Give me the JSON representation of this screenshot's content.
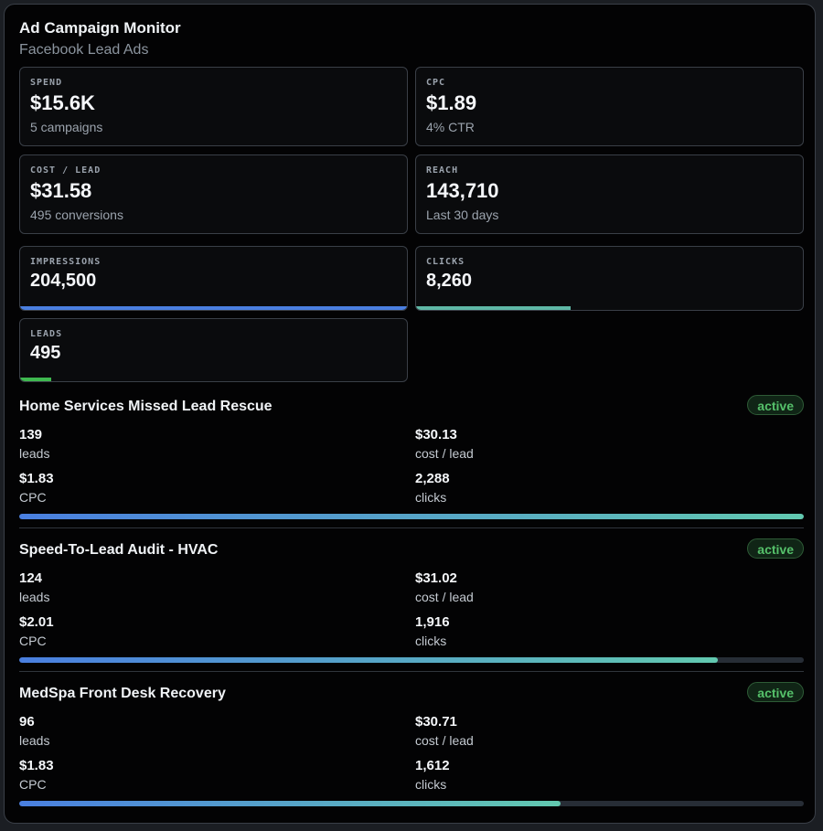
{
  "header": {
    "title": "Ad Campaign Monitor",
    "subtitle": "Facebook Lead Ads"
  },
  "summary_cards": [
    {
      "label": "SPEND",
      "value": "$15.6K",
      "sub": "5 campaigns"
    },
    {
      "label": "CPC",
      "value": "$1.89",
      "sub": "4% CTR"
    },
    {
      "label": "COST / LEAD",
      "value": "$31.58",
      "sub": "495 conversions"
    },
    {
      "label": "REACH",
      "value": "143,710",
      "sub": "Last 30 days"
    }
  ],
  "progress_cards": [
    {
      "label": "IMPRESSIONS",
      "value": "204,500",
      "fill": 1.0,
      "color": "#4a7fe0"
    },
    {
      "label": "CLICKS",
      "value": "8,260",
      "fill": 0.4,
      "color": "#5fb8a6"
    },
    {
      "label": "LEADS",
      "value": "495",
      "fill": 0.08,
      "color": "#3fb950"
    }
  ],
  "campaigns": [
    {
      "name": "Home Services Missed Lead Rescue",
      "status": "active",
      "leads": "139",
      "leads_label": "leads",
      "cost_per_lead": "$30.13",
      "cost_per_lead_label": "cost / lead",
      "cpc": "$1.83",
      "cpc_label": "CPC",
      "clicks": "2,288",
      "clicks_label": "clicks",
      "progress": 1.0
    },
    {
      "name": "Speed-To-Lead Audit - HVAC",
      "status": "active",
      "leads": "124",
      "leads_label": "leads",
      "cost_per_lead": "$31.02",
      "cost_per_lead_label": "cost / lead",
      "cpc": "$2.01",
      "cpc_label": "CPC",
      "clicks": "1,916",
      "clicks_label": "clicks",
      "progress": 0.89
    },
    {
      "name": "MedSpa Front Desk Recovery",
      "status": "active",
      "leads": "96",
      "leads_label": "leads",
      "cost_per_lead": "$30.71",
      "cost_per_lead_label": "cost / lead",
      "cpc": "$1.83",
      "cpc_label": "CPC",
      "clicks": "1,612",
      "clicks_label": "clicks",
      "progress": 0.69
    }
  ]
}
